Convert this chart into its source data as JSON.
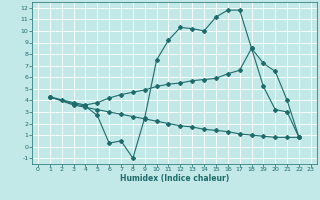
{
  "xlabel": "Humidex (Indice chaleur)",
  "bg_color": "#c2e8e8",
  "line_color": "#1e6b6b",
  "grid_color": "#ffffff",
  "xlim": [
    -0.5,
    23.5
  ],
  "ylim": [
    -1.5,
    12.5
  ],
  "xticks": [
    0,
    1,
    2,
    3,
    4,
    5,
    6,
    7,
    8,
    9,
    10,
    11,
    12,
    13,
    14,
    15,
    16,
    17,
    18,
    19,
    20,
    21,
    22,
    23
  ],
  "yticks": [
    -1,
    0,
    1,
    2,
    3,
    4,
    5,
    6,
    7,
    8,
    9,
    10,
    11,
    12
  ],
  "line1_x": [
    1,
    2,
    3,
    4,
    5,
    6,
    7,
    8,
    9,
    10,
    11,
    12,
    13,
    14,
    15,
    16,
    17,
    18,
    19,
    20,
    21,
    22
  ],
  "line1_y": [
    4.3,
    4.0,
    3.7,
    3.5,
    2.7,
    0.3,
    0.5,
    -1.0,
    2.5,
    7.5,
    9.2,
    10.3,
    10.2,
    10.0,
    11.2,
    11.8,
    11.8,
    8.5,
    5.2,
    3.2,
    3.0,
    0.8
  ],
  "line2_x": [
    1,
    3,
    4,
    5,
    6,
    7,
    8,
    9,
    10,
    11,
    12,
    13,
    14,
    15,
    16,
    17,
    18,
    19,
    20,
    21,
    22
  ],
  "line2_y": [
    4.3,
    3.8,
    3.6,
    3.8,
    4.2,
    4.5,
    4.7,
    4.9,
    5.2,
    5.4,
    5.5,
    5.7,
    5.8,
    5.9,
    6.3,
    6.6,
    8.5,
    7.2,
    6.5,
    4.0,
    0.8
  ],
  "line3_x": [
    1,
    3,
    4,
    5,
    6,
    7,
    8,
    9,
    10,
    11,
    12,
    13,
    14,
    15,
    16,
    17,
    18,
    19,
    20,
    21,
    22
  ],
  "line3_y": [
    4.3,
    3.6,
    3.4,
    3.2,
    3.0,
    2.8,
    2.6,
    2.4,
    2.2,
    2.0,
    1.8,
    1.7,
    1.5,
    1.4,
    1.3,
    1.1,
    1.0,
    0.9,
    0.8,
    0.8,
    0.8
  ],
  "markersize": 2.0,
  "linewidth": 0.8
}
